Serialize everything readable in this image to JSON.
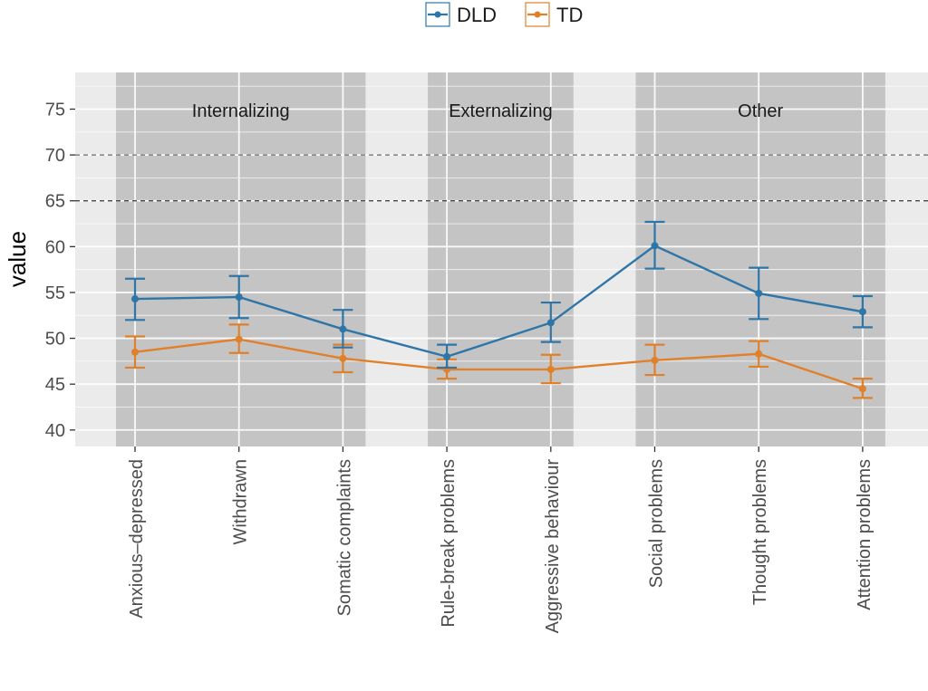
{
  "chart_data": {
    "type": "line",
    "ylabel": "value",
    "xlabel": "",
    "ylim": [
      38.2,
      79
    ],
    "yticks": [
      40,
      45,
      50,
      55,
      60,
      65,
      70,
      75
    ],
    "categories": [
      "Anxious–depressed",
      "Withdrawn",
      "Somatic complaints",
      "Rule-break problems",
      "Aggressive behaviour",
      "Social problems",
      "Thought problems",
      "Attention problems"
    ],
    "groups": [
      {
        "label": "Internalizing",
        "from": 0,
        "to": 2
      },
      {
        "label": "Externalizing",
        "from": 3,
        "to": 4
      },
      {
        "label": "Other",
        "from": 5,
        "to": 7
      }
    ],
    "reference_lines": [
      65,
      70
    ],
    "series": [
      {
        "name": "DLD",
        "color": "#2e75a8",
        "values": [
          54.3,
          54.5,
          51.0,
          48.0,
          51.7,
          60.1,
          54.9,
          52.9
        ],
        "lower": [
          52.0,
          52.2,
          49.0,
          46.8,
          49.6,
          57.6,
          52.1,
          51.2
        ],
        "upper": [
          56.5,
          56.8,
          53.1,
          49.3,
          53.9,
          62.7,
          57.7,
          54.6
        ]
      },
      {
        "name": "TD",
        "color": "#e0802b",
        "values": [
          48.5,
          49.9,
          47.8,
          46.6,
          46.6,
          47.6,
          48.3,
          44.5
        ],
        "lower": [
          46.8,
          48.4,
          46.3,
          45.6,
          45.1,
          46.0,
          46.9,
          43.5
        ],
        "upper": [
          50.2,
          51.5,
          49.3,
          47.7,
          48.2,
          49.3,
          49.7,
          45.6
        ]
      }
    ],
    "grid": true,
    "legend_position": "top"
  }
}
